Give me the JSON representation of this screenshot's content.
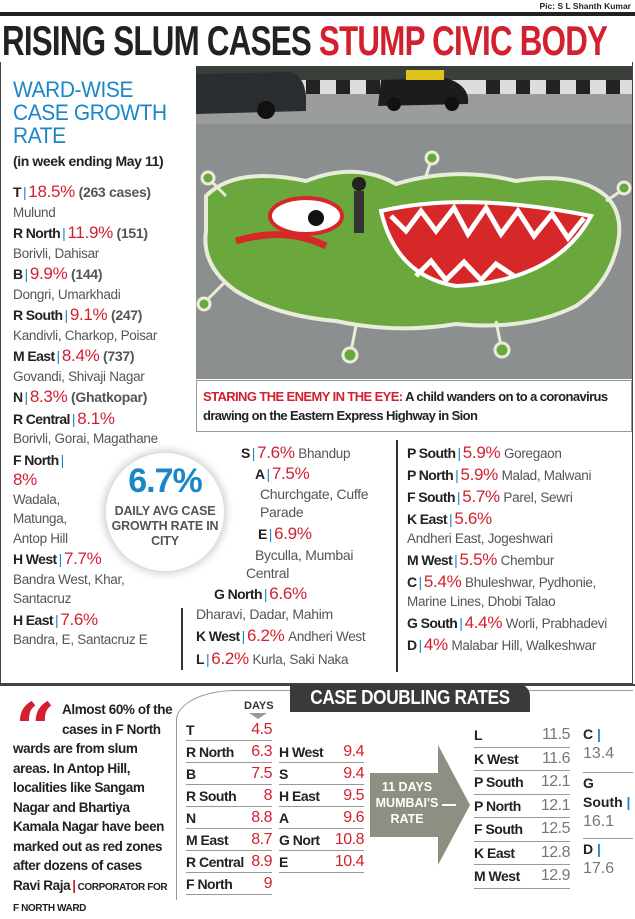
{
  "credit": "Pic: S L Shanth Kumar",
  "headline": {
    "black": "RISING SLUM CASES",
    "red": "STUMP CIVIC BODY"
  },
  "caption": {
    "lead": "STARING THE ENEMY IN THE EYE:",
    "text": "A child wanders on to a coronavirus drawing on the Eastern Express Highway in Sion"
  },
  "ward_growth": {
    "title": "WARD-WISE CASE GROWTH RATE",
    "subtitle": "(in week ending May 11)",
    "entries": [
      {
        "ward": "T",
        "pct": "18.5%",
        "extra": "(263 cases)",
        "localities": "Mulund"
      },
      {
        "ward": "R North",
        "pct": "11.9%",
        "extra": "(151)",
        "localities": "Borivli, Dahisar"
      },
      {
        "ward": "B",
        "pct": "9.9%",
        "extra": "(144)",
        "localities": "Dongri, Umarkhadi"
      },
      {
        "ward": "R South",
        "pct": "9.1%",
        "extra": "(247)",
        "localities": "Kandivli, Charkop, Poisar"
      },
      {
        "ward": "M East",
        "pct": "8.4%",
        "extra": "(737)",
        "localities": "Govandi, Shivaji Nagar"
      },
      {
        "ward": "N",
        "pct": "8.3%",
        "extra": "(Ghatkopar)",
        "localities": ""
      },
      {
        "ward": "R Central",
        "pct": "8.1%",
        "extra": "",
        "localities": "Borivli, Gorai, Magathane"
      },
      {
        "ward": "F North",
        "pct": "8%",
        "extra": "",
        "localities": "Wadala, Matunga, Antop Hill"
      },
      {
        "ward": "H West",
        "pct": "7.7%",
        "extra": "",
        "localities": "Bandra West, Khar, Santacruz"
      },
      {
        "ward": "H East",
        "pct": "7.6%",
        "extra": "",
        "localities": "Bandra, E, Santacruz E"
      }
    ],
    "middle": [
      {
        "ward": "S",
        "pct": "7.6%",
        "localities": "Bhandup"
      },
      {
        "ward": "A",
        "pct": "7.5%",
        "localities": "Churchgate, Cuffe Parade"
      },
      {
        "ward": "E",
        "pct": "6.9%",
        "localities": "Byculla, Mumbai Central"
      },
      {
        "ward": "G North",
        "pct": "6.6%",
        "localities": "Dharavi, Dadar, Mahim"
      },
      {
        "ward": "K West",
        "pct": "6.2%",
        "localities": "Andheri West"
      },
      {
        "ward": "L",
        "pct": "6.2%",
        "localities": "Kurla, Saki Naka"
      }
    ],
    "right": [
      {
        "ward": "P South",
        "pct": "5.9%",
        "localities": "Goregaon"
      },
      {
        "ward": "P North",
        "pct": "5.9%",
        "localities": "Malad, Malwani"
      },
      {
        "ward": "F South",
        "pct": "5.7%",
        "localities": "Parel, Sewri"
      },
      {
        "ward": "K East",
        "pct": "5.6%",
        "localities": "Andheri East, Jogeshwari"
      },
      {
        "ward": "M West",
        "pct": "5.5%",
        "localities": "Chembur"
      },
      {
        "ward": "C",
        "pct": "5.4%",
        "localities": "Bhuleshwar, Pydhonie, Marine Lines, Dhobi Talao"
      },
      {
        "ward": "G South",
        "pct": "4.4%",
        "localities": "Worli, Prabhadevi"
      },
      {
        "ward": "D",
        "pct": "4%",
        "localities": "Malabar Hill, Walkeshwar"
      }
    ]
  },
  "city_avg": {
    "value": "6.7%",
    "label": "DAILY AVG CASE GROWTH RATE IN CITY"
  },
  "quote": {
    "text_first": "Almost 60% of the cases in",
    "text_rest": "F North wards are from slum areas. In Antop Hill, localities like Sangam Nagar and Bhartiya Kamala Nagar have been marked out as red zones after dozens of cases",
    "name": "Ravi Raja",
    "role": "CORPORATOR FOR F NORTH WARD"
  },
  "doubling": {
    "title": "CASE DOUBLING RATES",
    "days_label": "DAYS",
    "mumbai_rate": "11 DAYS MUMBAI'S RATE",
    "col1": [
      {
        "ward": "T",
        "days": "4.5"
      },
      {
        "ward": "R North",
        "days": "6.3"
      },
      {
        "ward": "B",
        "days": "7.5"
      },
      {
        "ward": "R South",
        "days": "8"
      },
      {
        "ward": "N",
        "days": "8.8"
      },
      {
        "ward": "M East",
        "days": "8.7"
      },
      {
        "ward": "R Central",
        "days": "8.9"
      },
      {
        "ward": "F North",
        "days": "9"
      }
    ],
    "col2": [
      {
        "ward": "H West",
        "days": "9.4"
      },
      {
        "ward": "S",
        "days": "9.4"
      },
      {
        "ward": "H East",
        "days": "9.5"
      },
      {
        "ward": "A",
        "days": "9.6"
      },
      {
        "ward": "G Nort",
        "days": "10.8"
      },
      {
        "ward": "E",
        "days": "10.4"
      }
    ],
    "col3": [
      {
        "ward": "L",
        "days": "11.5"
      },
      {
        "ward": "K West",
        "days": "11.6"
      },
      {
        "ward": "P South",
        "days": "12.1"
      },
      {
        "ward": "P North",
        "days": "12.1"
      },
      {
        "ward": "F South",
        "days": "12.5"
      },
      {
        "ward": "K East",
        "days": "12.8"
      },
      {
        "ward": "M West",
        "days": "12.9"
      }
    ],
    "col4": [
      {
        "ward": "C",
        "days": "13.4"
      },
      {
        "ward": "G South",
        "days": "16.1"
      },
      {
        "ward": "D",
        "days": "17.6"
      }
    ]
  },
  "colors": {
    "red": "#d3202f",
    "blue": "#1a86c7",
    "dark": "#3a3a3a"
  }
}
